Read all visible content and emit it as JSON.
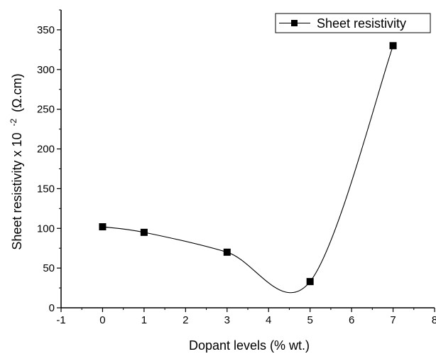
{
  "chart_data": {
    "type": "line",
    "title": "",
    "xlabel": "Dopant levels (% wt.)",
    "ylabel": "Sheet resistivity x 10",
    "ylabel_superscript": "-2",
    "ylabel_unit": "(Ω.cm)",
    "xlim": [
      -1,
      8
    ],
    "ylim": [
      0,
      375
    ],
    "xticks": [
      -1,
      0,
      1,
      2,
      3,
      4,
      5,
      6,
      7,
      8
    ],
    "yticks": [
      0,
      50,
      100,
      150,
      200,
      250,
      300,
      350
    ],
    "grid": false,
    "legend_position": "top-right",
    "series": [
      {
        "name": "Sheet resistivity",
        "color": "#000000",
        "marker": "square",
        "smooth": true,
        "x": [
          0,
          1,
          3,
          5,
          7
        ],
        "y": [
          102,
          95,
          70,
          33,
          330
        ]
      }
    ]
  }
}
